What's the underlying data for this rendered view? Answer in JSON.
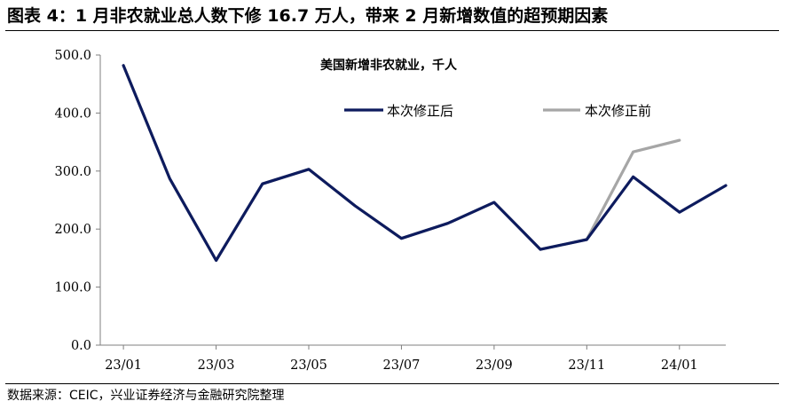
{
  "figure": {
    "title": "图表 4：1 月非农就业总人数下修 16.7 万人，带来 2 月新增数值的超预期因素",
    "source": "数据来源：CEIC，兴业证券经济与金融研究院整理"
  },
  "chart_data": {
    "type": "line",
    "title": "美国新增非农就业，千人",
    "x": [
      "23/01",
      "23/02",
      "23/03",
      "23/04",
      "23/05",
      "23/06",
      "23/07",
      "23/08",
      "23/09",
      "23/10",
      "23/11",
      "23/12",
      "24/01",
      "24/02"
    ],
    "x_tick_labels": [
      "23/01",
      "23/03",
      "23/05",
      "23/07",
      "23/09",
      "23/11",
      "24/01"
    ],
    "y_tick_labels": [
      "0.0",
      "100.0",
      "200.0",
      "300.0",
      "400.0",
      "500.0"
    ],
    "ylim": [
      0,
      500
    ],
    "grid": false,
    "legend_position": "top-right",
    "series": [
      {
        "name": "本次修正后",
        "color": "#0d1b5e",
        "values": [
          482,
          287,
          146,
          278,
          303,
          240,
          184,
          210,
          246,
          165,
          182,
          290,
          229,
          275
        ]
      },
      {
        "name": "本次修正前",
        "color": "#a6a6a6",
        "values": [
          482,
          287,
          146,
          278,
          303,
          240,
          184,
          210,
          246,
          165,
          182,
          333,
          353,
          null
        ]
      }
    ]
  }
}
